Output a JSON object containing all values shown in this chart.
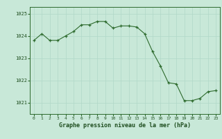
{
  "x": [
    0,
    1,
    2,
    3,
    4,
    5,
    6,
    7,
    8,
    9,
    10,
    11,
    12,
    13,
    14,
    15,
    16,
    17,
    18,
    19,
    20,
    21,
    22,
    23
  ],
  "y": [
    1023.8,
    1024.1,
    1023.8,
    1023.8,
    1024.0,
    1024.2,
    1024.5,
    1024.5,
    1024.65,
    1024.65,
    1024.35,
    1024.45,
    1024.45,
    1024.4,
    1024.1,
    1023.3,
    1022.65,
    1021.9,
    1021.85,
    1021.1,
    1021.1,
    1021.2,
    1021.5,
    1021.55
  ],
  "ylim": [
    1020.5,
    1025.3
  ],
  "yticks": [
    1021,
    1022,
    1023,
    1024,
    1025
  ],
  "xticks": [
    0,
    1,
    2,
    3,
    4,
    5,
    6,
    7,
    8,
    9,
    10,
    11,
    12,
    13,
    14,
    15,
    16,
    17,
    18,
    19,
    20,
    21,
    22,
    23
  ],
  "xlabel": "Graphe pression niveau de la mer (hPa)",
  "line_color": "#2d6a2d",
  "marker_color": "#2d6a2d",
  "bg_color": "#c8e8d8",
  "grid_color": "#b0d8c8",
  "tick_label_color": "#1e4d1e",
  "xlabel_color": "#1e4d1e"
}
